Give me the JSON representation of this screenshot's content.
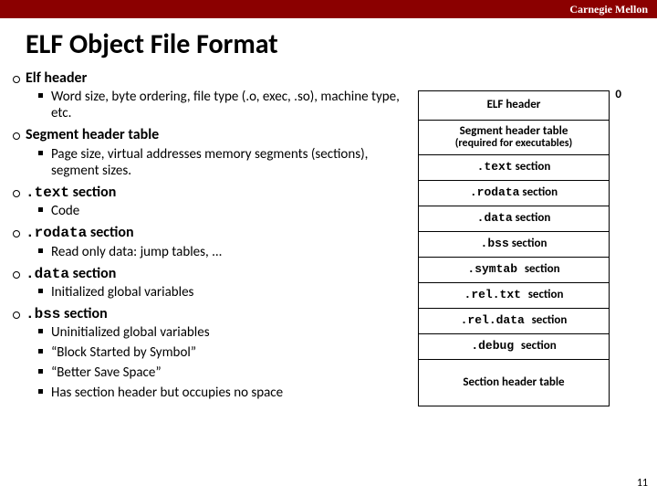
{
  "header": {
    "university": "Carnegie Mellon",
    "bar_color": "#8b0000"
  },
  "title": "ELF Object File Format",
  "bullets": [
    {
      "label": "Elf header",
      "sub": [
        "Word size, byte ordering, file type (.o, exec, .so), machine type, etc."
      ]
    },
    {
      "label": "Segment header table",
      "sub": [
        "Page size, virtual addresses memory segments (sections), segment sizes."
      ]
    },
    {
      "label_html": ".text section",
      "mono_prefix": ".text",
      "label_rest": " section",
      "sub": [
        "Code"
      ]
    },
    {
      "label_html": ".rodata section",
      "mono_prefix": ".rodata",
      "label_rest": " section",
      "sub": [
        "Read only data: jump tables, ..."
      ]
    },
    {
      "label_html": ".data section",
      "mono_prefix": ".data",
      "label_rest": " section",
      "sub": [
        "Initialized global variables"
      ]
    },
    {
      "label_html": ".bss section",
      "mono_prefix": ".bss",
      "label_rest": " section",
      "sub": [
        "Uninitialized global variables",
        "“Block Started by Symbol”",
        "“Better Save Space”",
        "Has section header but occupies no space"
      ]
    }
  ],
  "diagram": {
    "zero": "0",
    "rows": [
      {
        "text": "ELF header",
        "sub": "",
        "h": 32
      },
      {
        "text": "Segment header table",
        "sub": "(required for executables)",
        "h": 38
      },
      {
        "mono": ".text",
        "rest": " section",
        "h": 28
      },
      {
        "mono": ".rodata",
        "rest": " section",
        "h": 28
      },
      {
        "mono": ".data",
        "rest": " section",
        "h": 28
      },
      {
        "mono": ".bss",
        "rest": " section",
        "h": 28
      },
      {
        "mono": ".symtab ",
        "rest": "section",
        "h": 28
      },
      {
        "mono": ".rel.txt ",
        "rest": "section",
        "h": 28
      },
      {
        "mono": ".rel.data ",
        "rest": "section",
        "h": 28
      },
      {
        "mono": ".debug ",
        "rest": "section",
        "h": 28
      },
      {
        "text": "Section header table",
        "sub": "",
        "h": 50
      }
    ]
  },
  "page_number": "11"
}
